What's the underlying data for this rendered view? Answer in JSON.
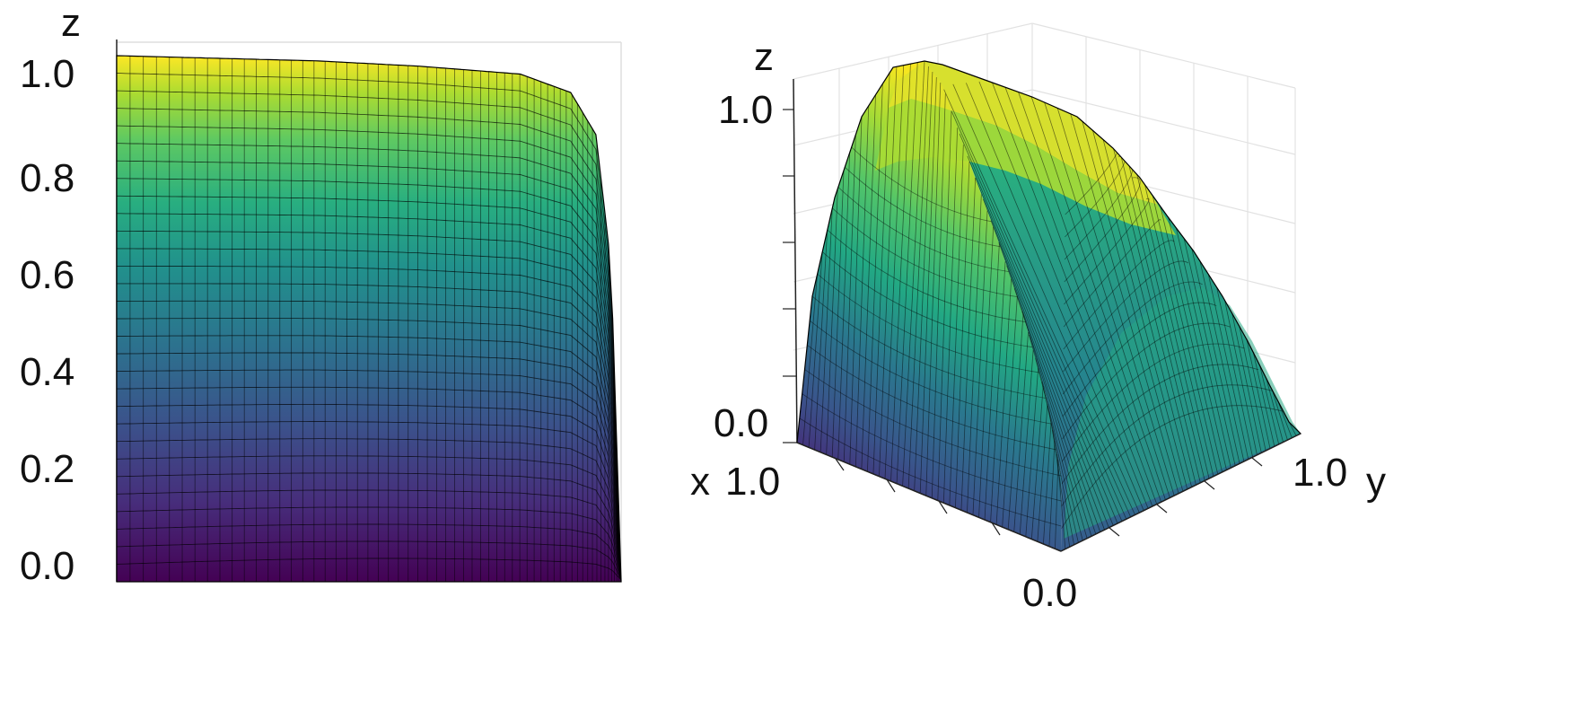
{
  "chart_data": [
    {
      "type": "surface",
      "view": "side (projected onto x–z)",
      "zlabel": "z",
      "z_ticks": [
        "0.0",
        "0.2",
        "0.4",
        "0.6",
        "0.8",
        "1.0"
      ],
      "z_range": [
        0.0,
        1.0
      ],
      "colormap": "viridis",
      "grid": true,
      "surface_profile": {
        "x": [
          0.0,
          0.2,
          0.4,
          0.6,
          0.8,
          0.9,
          0.95,
          0.98,
          1.0
        ],
        "z_top": [
          1.0,
          0.995,
          0.99,
          0.98,
          0.965,
          0.93,
          0.85,
          0.6,
          0.0
        ]
      }
    },
    {
      "type": "surface",
      "view": "3D perspective",
      "zlabel": "z",
      "xlabel": "x",
      "ylabel": "y",
      "z_ticks": [
        "0.0",
        "1.0"
      ],
      "x_ticks": [
        "1.0"
      ],
      "y_ticks": [
        "0.0",
        "1.0"
      ],
      "z_range": [
        0.0,
        1.0
      ],
      "colormap": "viridis",
      "grid": true
    }
  ],
  "colors": {
    "viridis_low": "#440154",
    "viridis_mid": "#21918c",
    "viridis_high": "#fde725",
    "mesh_line": "#000000",
    "grid_line": "#dddddd"
  }
}
